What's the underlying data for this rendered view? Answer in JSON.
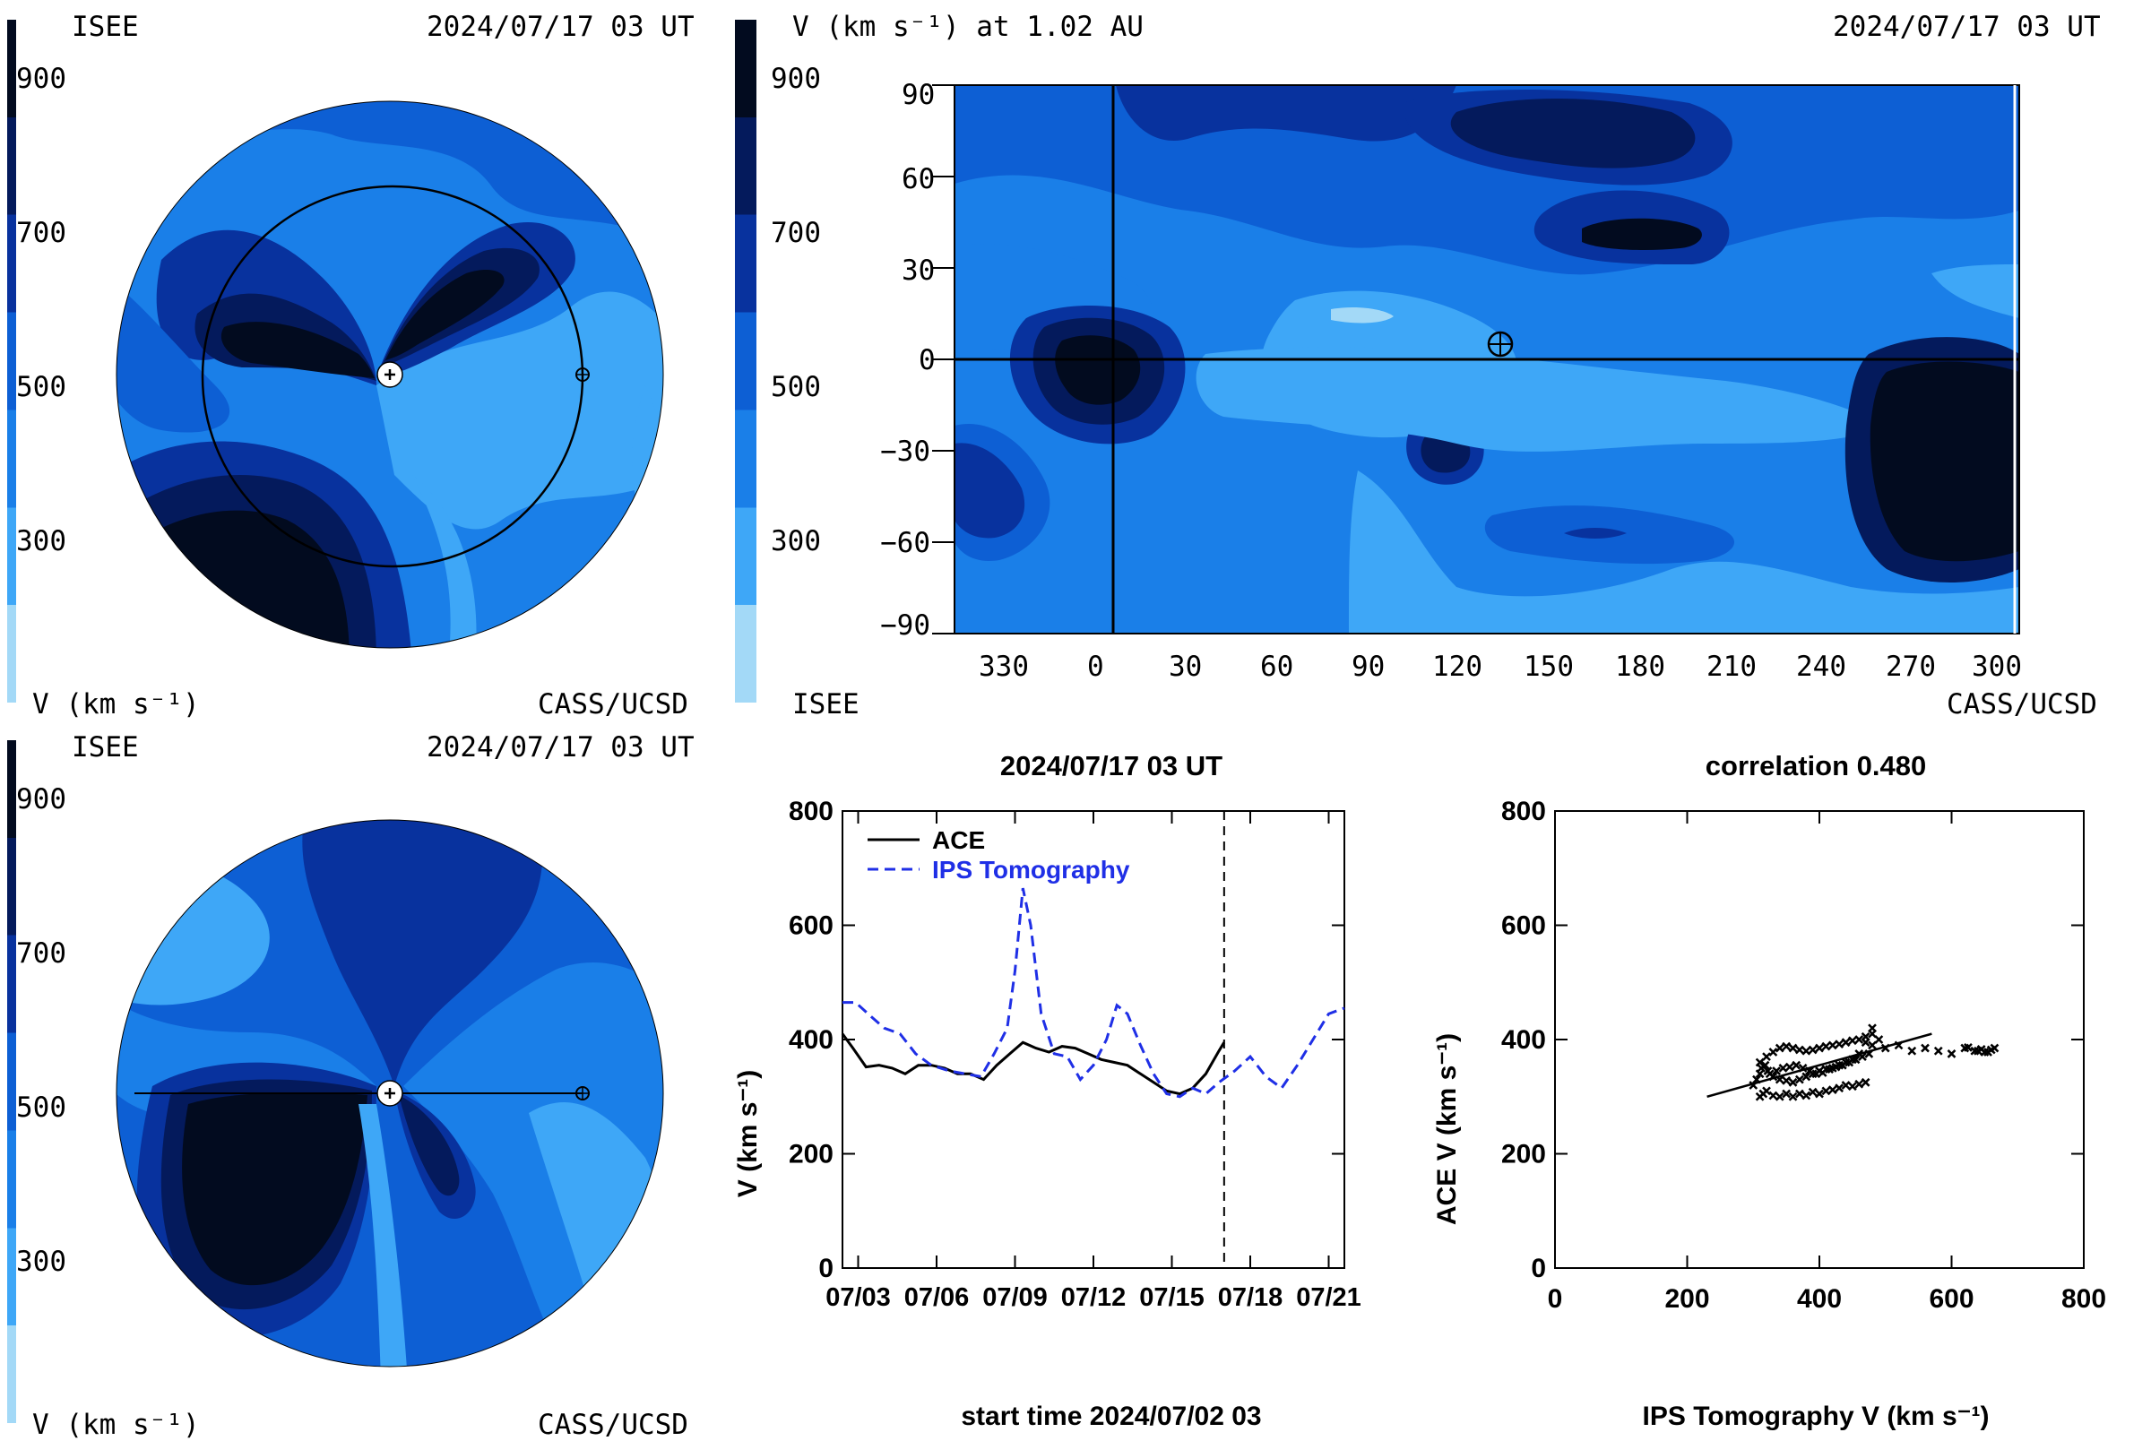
{
  "colors": {
    "levels": [
      "#a3d9f7",
      "#3ea7f7",
      "#1a7fe8",
      "#0d5fd4",
      "#08329e",
      "#041a5c",
      "#020b1f"
    ],
    "white": "#ffffff",
    "black": "#000000",
    "ips_line": "#1f2fe6"
  },
  "colorbar": {
    "ticks": [
      "900",
      "700",
      "500",
      "300"
    ],
    "bottom_label": "V (km s⁻¹)"
  },
  "panel_top_left": {
    "left_header": "ISEE",
    "right_header": "2024/07/17 03 UT",
    "footer": "CASS/UCSD"
  },
  "panel_bottom_left": {
    "left_header": "ISEE",
    "right_header": "2024/07/17 03 UT",
    "footer": "CASS/UCSD"
  },
  "panel_map": {
    "header_left": "V (km s⁻¹) at 1.02 AU",
    "header_right": "2024/07/17 03 UT",
    "footer_left": "ISEE",
    "footer_right": "CASS/UCSD",
    "y_ticks": [
      "90",
      "60",
      "30",
      "0",
      "−30",
      "−60",
      "−90"
    ],
    "x_ticks": [
      "330",
      "0",
      "30",
      "60",
      "90",
      "120",
      "150",
      "180",
      "210",
      "240",
      "270",
      "300"
    ]
  },
  "chart_data": [
    {
      "type": "line",
      "title": "2024/07/17 03 UT",
      "xlabel": "start time 2024/07/02 03",
      "ylabel": "V (km s⁻¹)",
      "x_tick_labels": [
        "07/03",
        "07/06",
        "07/09",
        "07/12",
        "07/15",
        "07/18",
        "07/21"
      ],
      "x_tick_days": [
        1,
        4,
        7,
        10,
        13,
        16,
        19
      ],
      "xlim": [
        0.4,
        19.6
      ],
      "ylim": [
        0,
        800
      ],
      "y_ticks": [
        0,
        200,
        400,
        600,
        800
      ],
      "current_time_day": 15.0,
      "legend": "top-left",
      "series": [
        {
          "name": "ACE",
          "style": "solid",
          "x": [
            0.4,
            0.8,
            1.3,
            1.8,
            2.3,
            2.8,
            3.3,
            3.8,
            4.3,
            4.8,
            5.3,
            5.8,
            6.3,
            6.8,
            7.3,
            7.8,
            8.3,
            8.8,
            9.3,
            9.8,
            10.3,
            10.8,
            11.3,
            11.8,
            12.3,
            12.8,
            13.3,
            13.8,
            14.3,
            14.8,
            15.0
          ],
          "y": [
            410,
            385,
            352,
            355,
            350,
            340,
            355,
            355,
            350,
            340,
            340,
            330,
            355,
            375,
            395,
            385,
            378,
            388,
            385,
            375,
            365,
            360,
            355,
            340,
            325,
            310,
            305,
            315,
            340,
            380,
            395
          ]
        },
        {
          "name": "IPS Tomography",
          "style": "dashed",
          "x": [
            0.4,
            0.9,
            1.5,
            2.0,
            2.6,
            3.2,
            3.8,
            4.5,
            5.1,
            5.7,
            6.2,
            6.7,
            7.0,
            7.3,
            7.6,
            8.0,
            8.5,
            9.0,
            9.5,
            10.0,
            10.5,
            10.9,
            11.3,
            11.8,
            12.3,
            12.8,
            13.3,
            13.8,
            14.3,
            14.8,
            15.4,
            16.0,
            16.6,
            17.2,
            17.8,
            18.4,
            19.0,
            19.6
          ],
          "y": [
            465,
            465,
            440,
            420,
            410,
            375,
            355,
            345,
            340,
            335,
            375,
            420,
            520,
            665,
            600,
            445,
            375,
            370,
            330,
            355,
            400,
            460,
            445,
            390,
            340,
            305,
            300,
            315,
            305,
            325,
            345,
            370,
            335,
            315,
            355,
            400,
            445,
            455
          ]
        }
      ]
    },
    {
      "type": "scatter",
      "title": "correlation 0.480",
      "xlabel": "IPS Tomography V (km s⁻¹)",
      "ylabel": "ACE V (km s⁻¹)",
      "xlim": [
        0,
        800
      ],
      "ylim": [
        0,
        800
      ],
      "x_ticks": [
        0,
        200,
        400,
        600,
        800
      ],
      "y_ticks": [
        0,
        200,
        400,
        600,
        800
      ],
      "fit_line": {
        "x": [
          230,
          570
        ],
        "y": [
          300,
          410
        ]
      },
      "points": {
        "x": [
          310,
          315,
          320,
          330,
          340,
          350,
          360,
          370,
          380,
          390,
          400,
          410,
          420,
          430,
          440,
          450,
          460,
          470,
          310,
          320,
          330,
          340,
          350,
          360,
          370,
          380,
          390,
          400,
          410,
          420,
          430,
          440,
          450,
          460,
          470,
          480,
          325,
          335,
          345,
          355,
          365,
          375,
          385,
          395,
          405,
          415,
          425,
          435,
          445,
          455,
          465,
          475,
          480,
          300,
          305,
          310,
          312,
          318,
          322,
          330,
          340,
          350,
          360,
          370,
          380,
          390,
          400,
          410,
          420,
          430,
          440,
          450,
          460,
          470,
          480,
          490,
          500,
          520,
          540,
          560,
          580,
          600,
          620,
          640,
          650,
          660,
          665,
          655,
          645,
          635,
          625
        ],
        "y": [
          300,
          305,
          310,
          302,
          300,
          305,
          300,
          305,
          302,
          308,
          305,
          310,
          312,
          315,
          320,
          318,
          322,
          325,
          360,
          370,
          378,
          385,
          388,
          385,
          382,
          380,
          382,
          385,
          388,
          390,
          392,
          395,
          398,
          400,
          405,
          410,
          340,
          345,
          350,
          352,
          355,
          350,
          345,
          340,
          342,
          348,
          352,
          355,
          360,
          365,
          370,
          375,
          390,
          320,
          330,
          340,
          350,
          355,
          345,
          335,
          330,
          328,
          325,
          330,
          335,
          340,
          345,
          348,
          350,
          355,
          360,
          365,
          375,
          395,
          420,
          400,
          385,
          390,
          380,
          385,
          380,
          375,
          385,
          380,
          378,
          382,
          385,
          378,
          383,
          380,
          386
        ]
      }
    }
  ]
}
